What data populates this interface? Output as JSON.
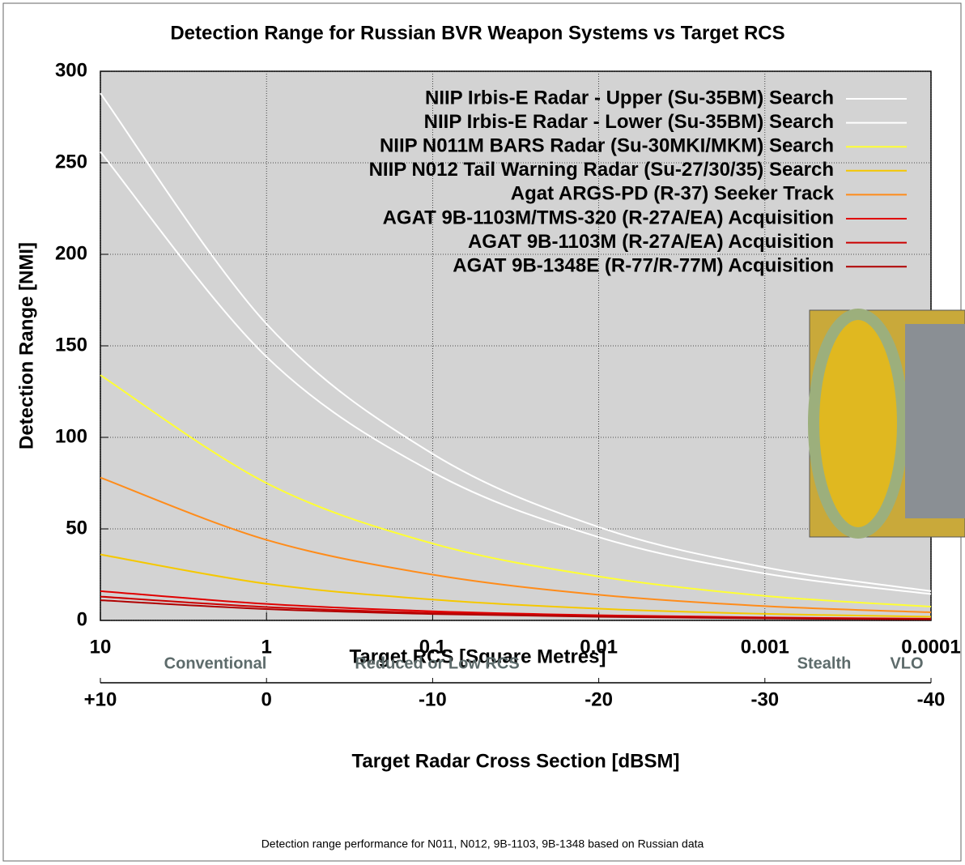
{
  "chart_data": {
    "type": "line",
    "title": "Detection Range for Russian BVR Weapon Systems vs Target RCS",
    "xlabel": "Target RCS [Square Metres]",
    "ylabel": "Detection Range [NMI]",
    "x": [
      10,
      1,
      0.1,
      0.01,
      0.001,
      0.0001
    ],
    "xscale": "log",
    "xlim": [
      10,
      0.0001
    ],
    "xticks": [
      10,
      1,
      0.1,
      0.01,
      0.001,
      0.0001
    ],
    "ylim": [
      0,
      300
    ],
    "yticks": [
      0,
      50,
      100,
      150,
      200,
      250,
      300
    ],
    "grid": true,
    "legend": "upper right",
    "series": [
      {
        "name": "NIIP Irbis-E Radar - Upper (Su-35BM) Search",
        "color": "#ffffff",
        "values": [
          288,
          162,
          91,
          51,
          29,
          16
        ]
      },
      {
        "name": "NIIP Irbis-E Radar - Lower (Su-35BM) Search",
        "color": "#ffffff",
        "values": [
          256,
          144,
          81,
          45.5,
          25.6,
          14.4
        ]
      },
      {
        "name": "NIIP N011M BARS Radar (Su-30MKI/MKM) Search",
        "color": "#ffff33",
        "values": [
          134,
          75,
          42,
          24,
          13.4,
          7.5
        ]
      },
      {
        "name": "NIIP N012 Tail Warning Radar (Su-27/30/35) Search",
        "color": "#f5c800",
        "values": [
          36,
          20,
          11.4,
          6.4,
          3.6,
          2
        ]
      },
      {
        "name": "Agat ARGS-PD (R-37) Seeker Track",
        "color": "#ff8c1a",
        "values": [
          78,
          44,
          25,
          14,
          7.8,
          4.4
        ]
      },
      {
        "name": "AGAT 9B-1103M/TMS-320 (R-27A/EA) Acquisition",
        "color": "#e00000",
        "values": [
          16,
          9,
          5,
          2.8,
          1.6,
          0.9
        ]
      },
      {
        "name": "AGAT 9B-1103M (R-27A/EA) Acquisition",
        "color": "#cc0000",
        "values": [
          13,
          7.3,
          4.1,
          2.3,
          1.3,
          0.7
        ]
      },
      {
        "name": "AGAT 9B-1348E (R-77/R-77M) Acquisition",
        "color": "#b00000",
        "values": [
          11,
          6.2,
          3.5,
          2,
          1.1,
          0.6
        ]
      }
    ],
    "x2label": "Target Radar Cross Section [dBSM]",
    "x2lim": [
      10,
      -40
    ],
    "x2ticks": [
      {
        "value": 10,
        "label": "+10"
      },
      0,
      -10,
      -20,
      -30,
      -40
    ],
    "annotations": [
      "Conventional",
      "Reduced or Low RCS",
      "Stealth",
      "VLO"
    ],
    "footnote": "Detection range performance for N011, N012, 9B-1103, 9B-1348 based on Russian data"
  }
}
